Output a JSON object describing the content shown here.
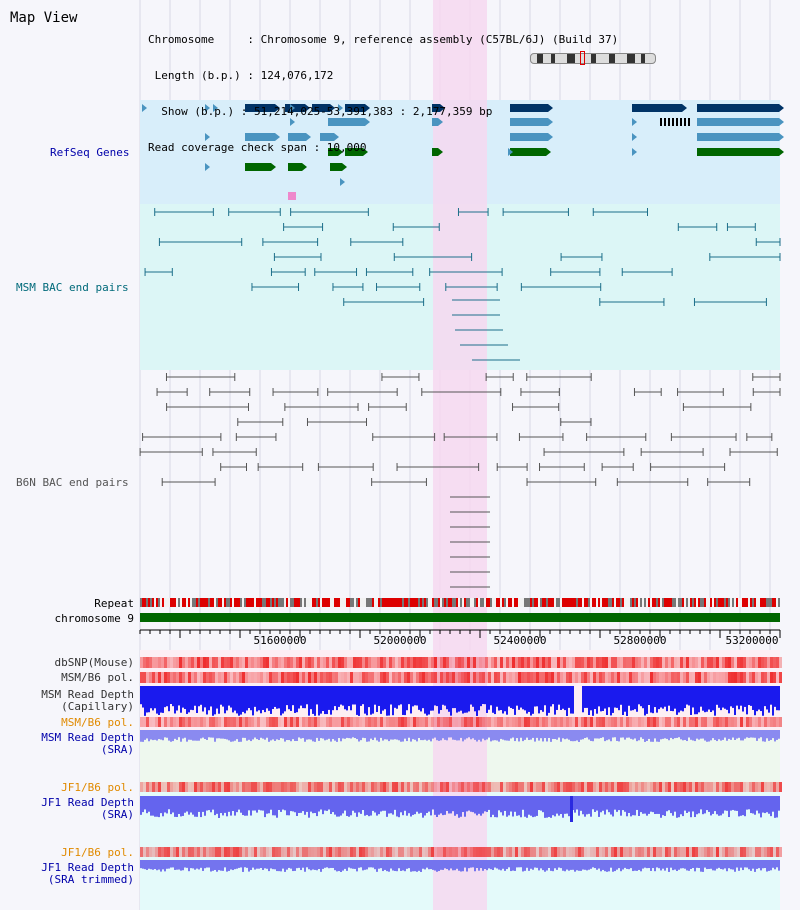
{
  "header": {
    "title": "Map View",
    "info_lines": [
      "Chromosome     : Chromosome 9, reference assembly (C57BL/6J) (Build 37)",
      " Length (b.p.) : 124,076,172",
      "  Show (b.p.) : 51,214,025-53,391,383 : 2,177,359 bp",
      "Read coverage check span : 10,000"
    ]
  },
  "tracks": {
    "refseq": "RefSeq Genes",
    "msm_bac": "MSM BAC end pairs",
    "b6n_bac": "B6N BAC end pairs",
    "repeat": "Repeat",
    "chromosome": "chromosome 9",
    "dbsnp": "dbSNP(Mouse)",
    "msm_b6_pol": "MSM/B6 pol.",
    "msm_depth_cap_1": "MSM Read Depth",
    "msm_depth_cap_2": "(Capillary)",
    "msm_b6_pol_2": "MSM/B6 pol.",
    "msm_depth_sra_1": "MSM Read Depth",
    "msm_depth_sra_2": "(SRA)",
    "jf1_b6_pol": "JF1/B6 pol.",
    "jf1_depth_1": "JF1 Read Depth",
    "jf1_depth_2": "(SRA)",
    "jf1_b6_pol_2": "JF1/B6 pol.",
    "jf1_trim_1": "JF1 Read Depth",
    "jf1_trim_2": "(SRA trimmed)"
  },
  "axis": {
    "ticks": [
      "51600000",
      "52000000",
      "52400000",
      "52800000",
      "53200000"
    ]
  },
  "colors": {
    "refseq_bg": "#d8eefa",
    "msm_bg": "#dcf6f6",
    "highlight": "#f6d8f0",
    "gene_dark": "#003366",
    "gene_mid": "#4a94c0",
    "gene_green": "#006600",
    "msm_line": "#1d6f8a",
    "b6n_line": "#555555",
    "chromosome": "#006600",
    "label_blue": "#0000aa",
    "label_teal": "#006a7a",
    "label_orange": "#e08a00"
  }
}
